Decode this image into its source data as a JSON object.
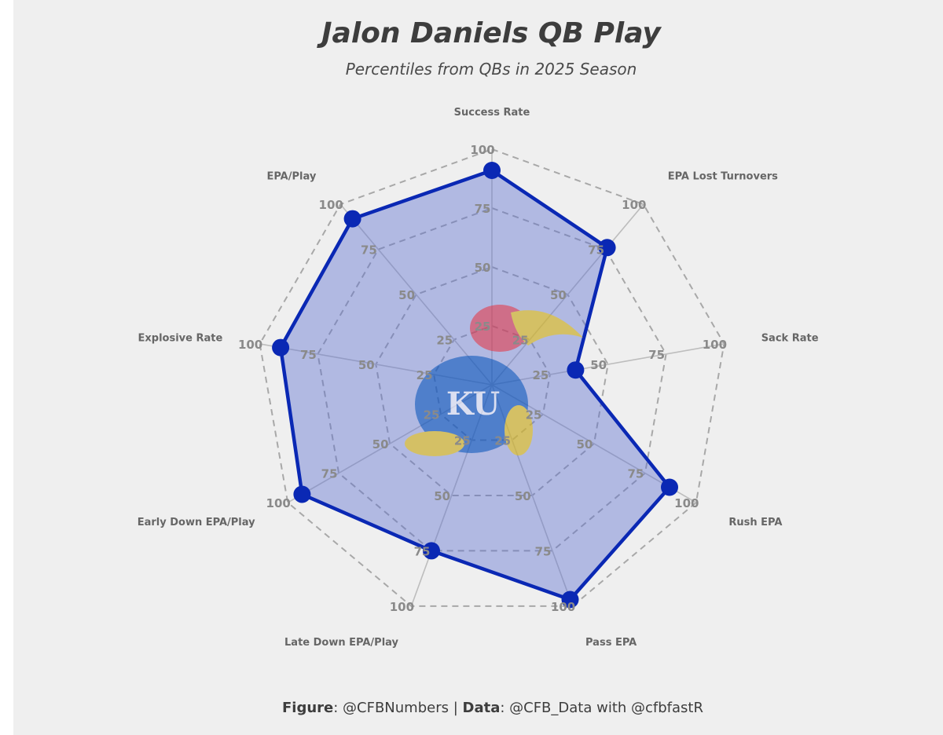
{
  "title": "Jalon Daniels QB Play",
  "subtitle": "Percentiles from QBs in 2025 Season",
  "footer": {
    "figure_label": "Figure",
    "figure_value": ": @CFBNumbers | ",
    "data_label": "Data",
    "data_value": ": @CFB_Data with @cfbfastR"
  },
  "logo": {
    "name": "Kansas Jayhawks logo",
    "text": "KU"
  },
  "colors": {
    "background": "#efefef",
    "series_line": "#0a28b4",
    "series_fill": "#5a6ecf",
    "grid": "#a8a8a8",
    "spoke": "#bdbdbd"
  },
  "chart_data": {
    "type": "radar",
    "title": "Jalon Daniels QB Play",
    "subtitle": "Percentiles from QBs in 2025 Season",
    "categories": [
      "Success Rate",
      "EPA Lost Turnovers",
      "Sack Rate",
      "Rush EPA",
      "Pass EPA",
      "Late Down EPA/Play",
      "Early Down EPA/Play",
      "Explosive Rate",
      "EPA/Play"
    ],
    "series": [
      {
        "values": [
          91,
          76,
          36,
          87,
          97,
          75,
          93,
          91,
          92
        ]
      }
    ],
    "rlim": [
      0,
      100
    ],
    "ticks": [
      "25",
      "50",
      "75",
      "100"
    ],
    "grid": true
  }
}
